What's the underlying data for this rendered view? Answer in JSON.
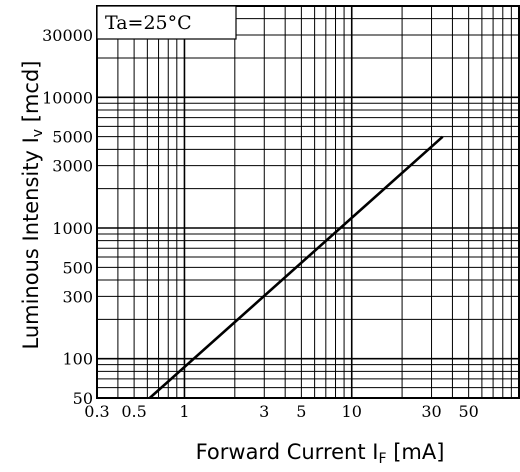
{
  "chart_data": {
    "type": "line",
    "annotation": "Ta=25°C",
    "xlabel": {
      "prefix": "Forward   Current I",
      "subscript": "F",
      "suffix": " [mA]"
    },
    "ylabel": {
      "prefix": "Luminous Intensity I",
      "subscript": "v",
      "suffix": " [mcd]"
    },
    "x_scale": "log",
    "y_scale": "log",
    "xlim": [
      0.3,
      100
    ],
    "ylim": [
      50,
      50000
    ],
    "x_tick_labels": [
      {
        "value": 0.3,
        "label": "0.3"
      },
      {
        "value": 0.5,
        "label": "0.5"
      },
      {
        "value": 1,
        "label": "1"
      },
      {
        "value": 3,
        "label": "3"
      },
      {
        "value": 5,
        "label": "5"
      },
      {
        "value": 10,
        "label": "10"
      },
      {
        "value": 30,
        "label": "30"
      },
      {
        "value": 50,
        "label": "50"
      }
    ],
    "y_tick_labels": [
      {
        "value": 50,
        "label": "50"
      },
      {
        "value": 100,
        "label": "100"
      },
      {
        "value": 300,
        "label": "300"
      },
      {
        "value": 500,
        "label": "500"
      },
      {
        "value": 1000,
        "label": "1000"
      },
      {
        "value": 3000,
        "label": "3000"
      },
      {
        "value": 5000,
        "label": "5000"
      },
      {
        "value": 10000,
        "label": "10000"
      },
      {
        "value": 30000,
        "label": "30000"
      }
    ],
    "grid": true,
    "series": [
      {
        "x": [
          0.62,
          35
        ],
        "y": [
          50,
          5000
        ],
        "color": "#000000"
      }
    ]
  }
}
